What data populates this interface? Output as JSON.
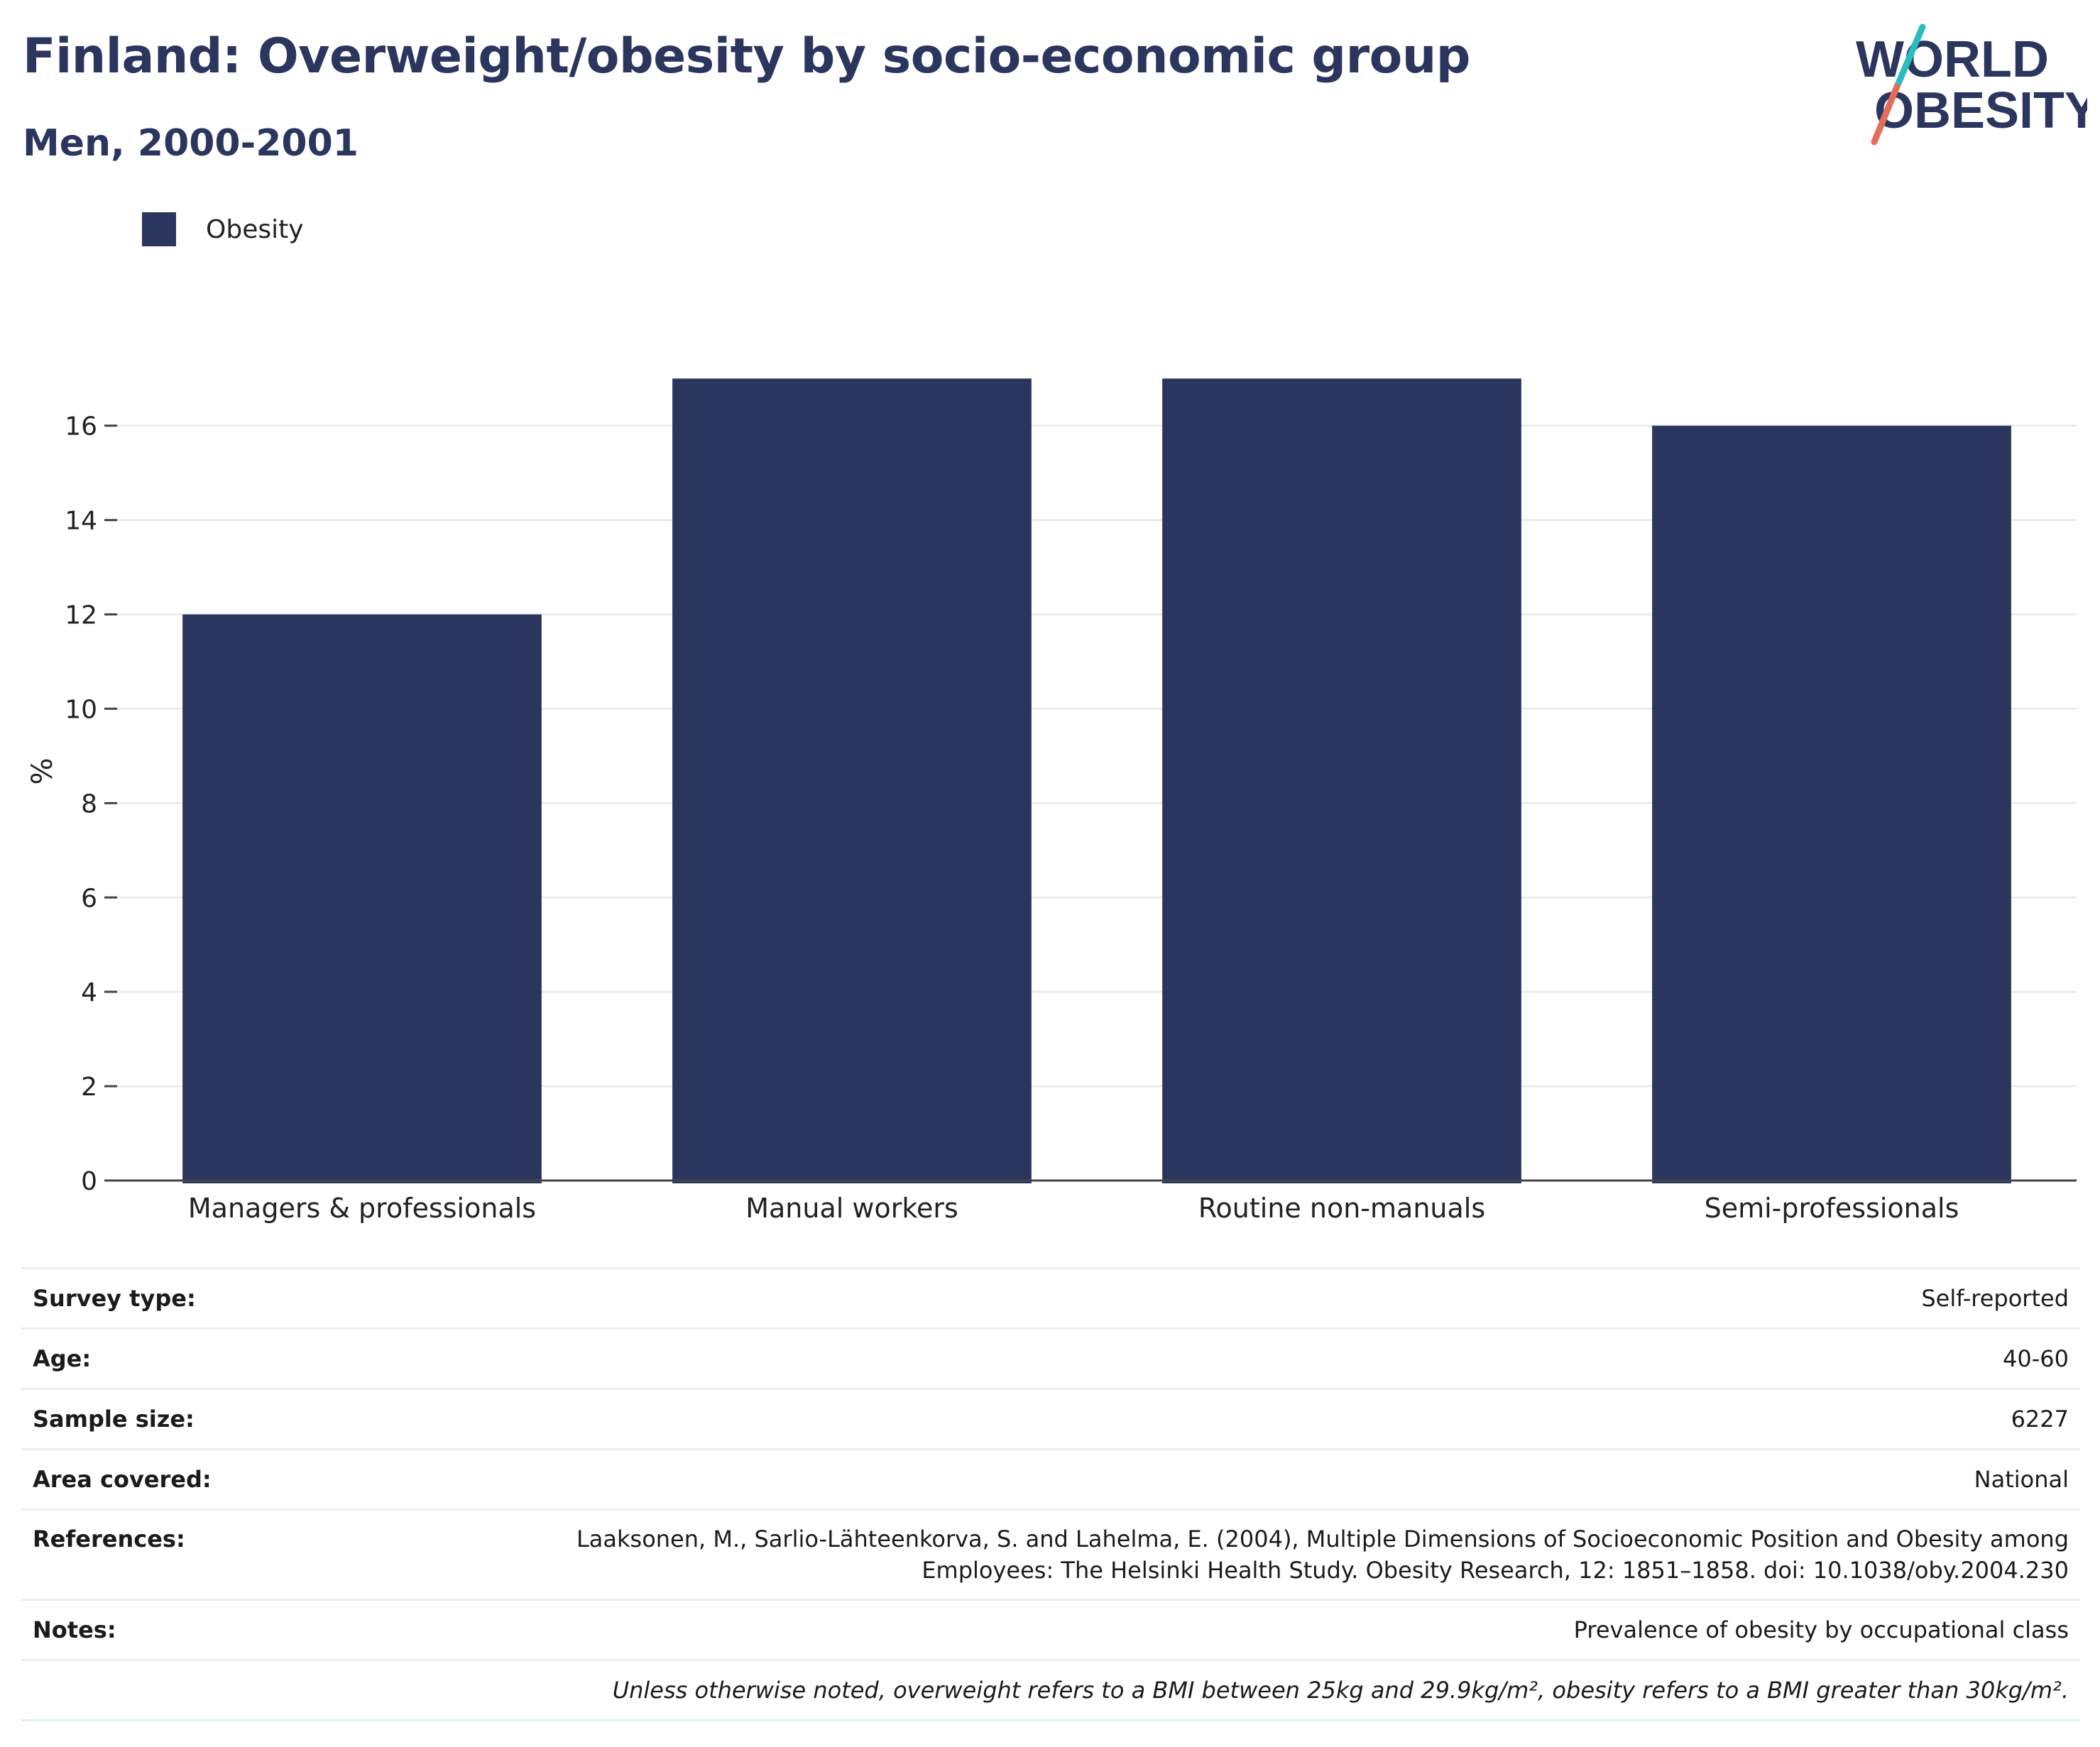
{
  "header": {
    "title": "Finland: Overweight/obesity by socio-economic group",
    "subtitle": "Men, 2000-2001"
  },
  "logo": {
    "line1": "WORLD",
    "line2": "OBESITY",
    "colors": {
      "text": "#2b365f",
      "slash_top": "#2bbcc0",
      "slash_bottom": "#e46c5c"
    }
  },
  "legend": {
    "label": "Obesity",
    "color": "#2b365f"
  },
  "chart_data": {
    "type": "bar",
    "categories": [
      "Managers & professionals",
      "Manual workers",
      "Routine non-manuals",
      "Semi-professionals"
    ],
    "series": [
      {
        "name": "Obesity",
        "values": [
          12,
          17,
          17,
          16
        ],
        "color": "#2b365f"
      }
    ],
    "ylabel": "%",
    "ylim": [
      0,
      17.5
    ],
    "yticks": [
      0,
      2,
      4,
      6,
      8,
      10,
      12,
      14,
      16
    ],
    "grid": true,
    "legend_position": "top-left"
  },
  "info": {
    "rows": [
      {
        "label": "Survey type:",
        "value": "Self-reported"
      },
      {
        "label": "Age:",
        "value": "40-60"
      },
      {
        "label": "Sample size:",
        "value": "6227"
      },
      {
        "label": "Area covered:",
        "value": "National"
      }
    ],
    "references": {
      "label": "References:",
      "line1": "Laaksonen, M., Sarlio-Lähteenkorva, S. and Lahelma, E. (2004), Multiple Dimensions of Socioeconomic Position and Obesity among",
      "line2": "Employees: The Helsinki Health Study. Obesity Research, 12: 1851–1858. doi: 10.1038/oby.2004.230"
    },
    "notes": {
      "label": "Notes:",
      "value": "Prevalence of obesity by occupational class"
    },
    "footnote": "Unless otherwise noted, overweight refers to a BMI between 25kg and 29.9kg/m², obesity refers to a BMI greater than 30kg/m²."
  }
}
